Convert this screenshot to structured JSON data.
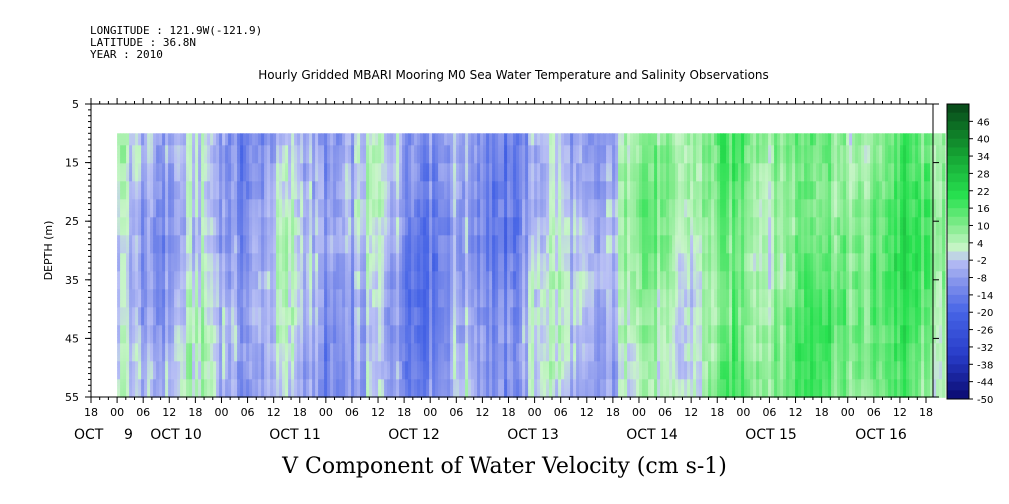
{
  "header": {
    "longitude": "LONGITUDE : 121.9W(-121.9)",
    "latitude": "LATITUDE : 36.8N",
    "year": "YEAR : 2010"
  },
  "chart_data": {
    "type": "heatmap",
    "title": "Hourly Gridded MBARI Mooring M0 Sea Water Temperature and Salinity Observations",
    "xlabel": "V Component of Water Velocity (cm s-1)",
    "ylabel": "DEPTH (m)",
    "ylim": [
      55,
      5
    ],
    "yticks": [
      5,
      15,
      25,
      35,
      45,
      55
    ],
    "x_hour_labels": [
      "18",
      "00",
      "06",
      "12",
      "18",
      "00",
      "06",
      "12",
      "18",
      "00",
      "06",
      "12",
      "18",
      "00",
      "06",
      "12",
      "18",
      "00",
      "06",
      "12",
      "18",
      "00",
      "06",
      "12",
      "18",
      "00",
      "06",
      "12",
      "18",
      "00",
      "06",
      "12",
      "18"
    ],
    "x_date_labels": [
      "OCT 9",
      "OCT 10",
      "OCT 11",
      "OCT 12",
      "OCT 13",
      "OCT 14",
      "OCT 15",
      "OCT 16"
    ],
    "data_depth_range": [
      10,
      55
    ],
    "colorbar_labels": [
      "46",
      "40",
      "34",
      "28",
      "22",
      "16",
      "10",
      "4",
      "-2",
      "-8",
      "-14",
      "-20",
      "-26",
      "-32",
      "-38",
      "-44",
      "-50"
    ],
    "colorbar_range": [
      -50,
      52
    ],
    "colors": {
      "strong_neg": "#0a0a70",
      "neg": "#3a50d8",
      "mild_neg": "#a8b2f0",
      "near_zero": "#d8dcf6",
      "mild_pos": "#b8f0b8",
      "pos": "#30e060",
      "strong_pos": "#0a5a20"
    },
    "v_by_day": [
      {
        "day": "OCT 9 (00-24)",
        "mean_v": -3
      },
      {
        "day": "OCT 10",
        "mean_v": -5
      },
      {
        "day": "OCT 11",
        "mean_v": -6
      },
      {
        "day": "OCT 12",
        "mean_v": -9
      },
      {
        "day": "OCT 13",
        "mean_v": -4
      },
      {
        "day": "OCT 14",
        "mean_v": 6
      },
      {
        "day": "OCT 15",
        "mean_v": 12
      },
      {
        "day": "OCT 16",
        "mean_v": 12
      }
    ]
  }
}
